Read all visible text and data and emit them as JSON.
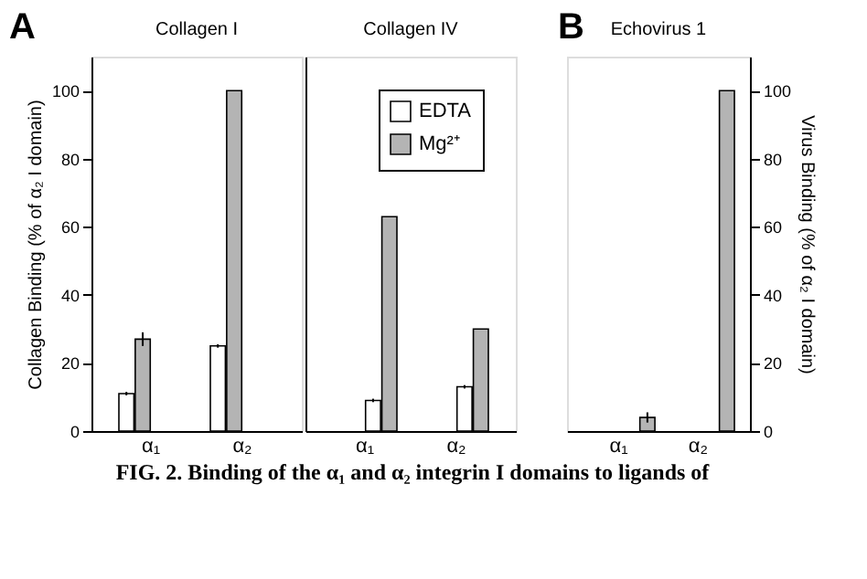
{
  "chart_data": [
    {
      "type": "bar",
      "title": "Collagen I",
      "ylabel": "Collagen Binding (% of α₂ I domain)",
      "categories": [
        "α₁",
        "α₂"
      ],
      "ylim": [
        0,
        110
      ],
      "yticks": [
        0,
        20,
        40,
        60,
        80,
        100
      ],
      "annotations": [
        "A",
        "FIG. 2. Binding of the α₁ and α₂ integrin I domains to ligands of"
      ],
      "series": [
        {
          "color": "#ffffff",
          "values": [
            11,
            25
          ],
          "errors": [
            0.5,
            0.5
          ]
        },
        {
          "color": "#b4b4b4",
          "values": [
            27,
            100
          ],
          "errors": [
            2,
            null
          ]
        }
      ]
    },
    {
      "type": "bar",
      "title": "Collagen IV",
      "categories": [
        "α₁",
        "α₂"
      ],
      "ylim": [
        0,
        110
      ],
      "yticks": [
        0,
        20,
        40,
        60,
        80,
        100
      ],
      "tick_labels": "x",
      "legend": "top right",
      "series": [
        {
          "name": "EDTA",
          "color": "#ffffff",
          "values": [
            9,
            13
          ],
          "errors": [
            0.5,
            0.5
          ]
        },
        {
          "name": "Mg²⁺",
          "color": "#b4b4b4",
          "values": [
            63,
            30
          ],
          "errors": [
            null,
            null
          ]
        }
      ]
    },
    {
      "type": "bar",
      "title": "Echovirus 1",
      "y2label": "Virus Binding (% of α₂ I domain)",
      "categories": [
        "α₁",
        "α₂"
      ],
      "y2lim": [
        0,
        110
      ],
      "y2ticks": [
        0,
        20,
        40,
        60,
        80,
        100
      ],
      "annotations": [
        "B"
      ],
      "series": [
        {
          "name": "Mg²⁺",
          "color": "#b4b4b4",
          "values": [
            4,
            100
          ],
          "errors": [
            1.5,
            null
          ],
          "axis": "y2"
        }
      ]
    }
  ]
}
